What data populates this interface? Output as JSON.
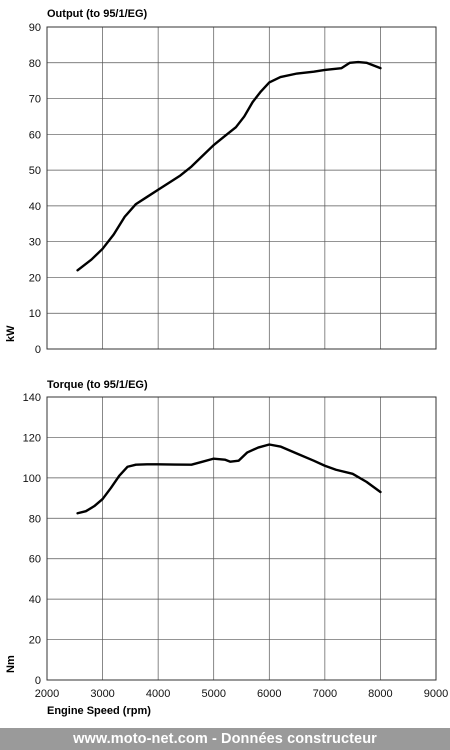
{
  "chart_data": [
    {
      "type": "line",
      "title": "Output (to 95/1/EG)",
      "xlabel": "",
      "ylabel": "kW",
      "xlim": [
        2000,
        9000
      ],
      "ylim": [
        0,
        90
      ],
      "xticks": [
        2000,
        3000,
        4000,
        5000,
        6000,
        7000,
        8000,
        9000
      ],
      "yticks": [
        0,
        10,
        20,
        30,
        40,
        50,
        60,
        70,
        80,
        90
      ],
      "show_x_tick_labels": false,
      "grid": true,
      "series": [
        {
          "color": "#000000",
          "x": [
            2550,
            2800,
            3000,
            3200,
            3400,
            3600,
            3800,
            4000,
            4200,
            4400,
            4600,
            4800,
            5000,
            5200,
            5400,
            5550,
            5700,
            5850,
            6000,
            6200,
            6500,
            6800,
            7000,
            7300,
            7450,
            7600,
            7750,
            8000
          ],
          "y": [
            22,
            25,
            28,
            32,
            37,
            40.5,
            42.5,
            44.5,
            46.5,
            48.5,
            51,
            54,
            57,
            59.5,
            62,
            65,
            69,
            72,
            74.5,
            76,
            77,
            77.5,
            78,
            78.5,
            80,
            80.2,
            80,
            78.5
          ]
        }
      ]
    },
    {
      "type": "line",
      "title": "Torque  (to 95/1/EG)",
      "xlabel": "Engine Speed (rpm)",
      "ylabel": "Nm",
      "xlim": [
        2000,
        9000
      ],
      "ylim": [
        0,
        140
      ],
      "xticks": [
        2000,
        3000,
        4000,
        5000,
        6000,
        7000,
        8000,
        9000
      ],
      "yticks": [
        0,
        20,
        40,
        60,
        80,
        100,
        120,
        140
      ],
      "show_x_tick_labels": true,
      "grid": true,
      "series": [
        {
          "color": "#000000",
          "x": [
            2550,
            2700,
            2850,
            3000,
            3150,
            3300,
            3450,
            3600,
            3800,
            4000,
            4300,
            4600,
            4800,
            5000,
            5200,
            5300,
            5450,
            5600,
            5800,
            6000,
            6200,
            6500,
            6800,
            7000,
            7200,
            7500,
            7750,
            8000
          ],
          "y": [
            82.5,
            83.5,
            86,
            89.5,
            95,
            101,
            105.5,
            106.5,
            106.7,
            106.7,
            106.6,
            106.5,
            108,
            109.5,
            109,
            108,
            108.5,
            112.5,
            115,
            116.5,
            115.5,
            112,
            108.5,
            106,
            104,
            102,
            98,
            93
          ]
        }
      ]
    }
  ],
  "footer": {
    "text": "www.moto-net.com - Données constructeur"
  }
}
